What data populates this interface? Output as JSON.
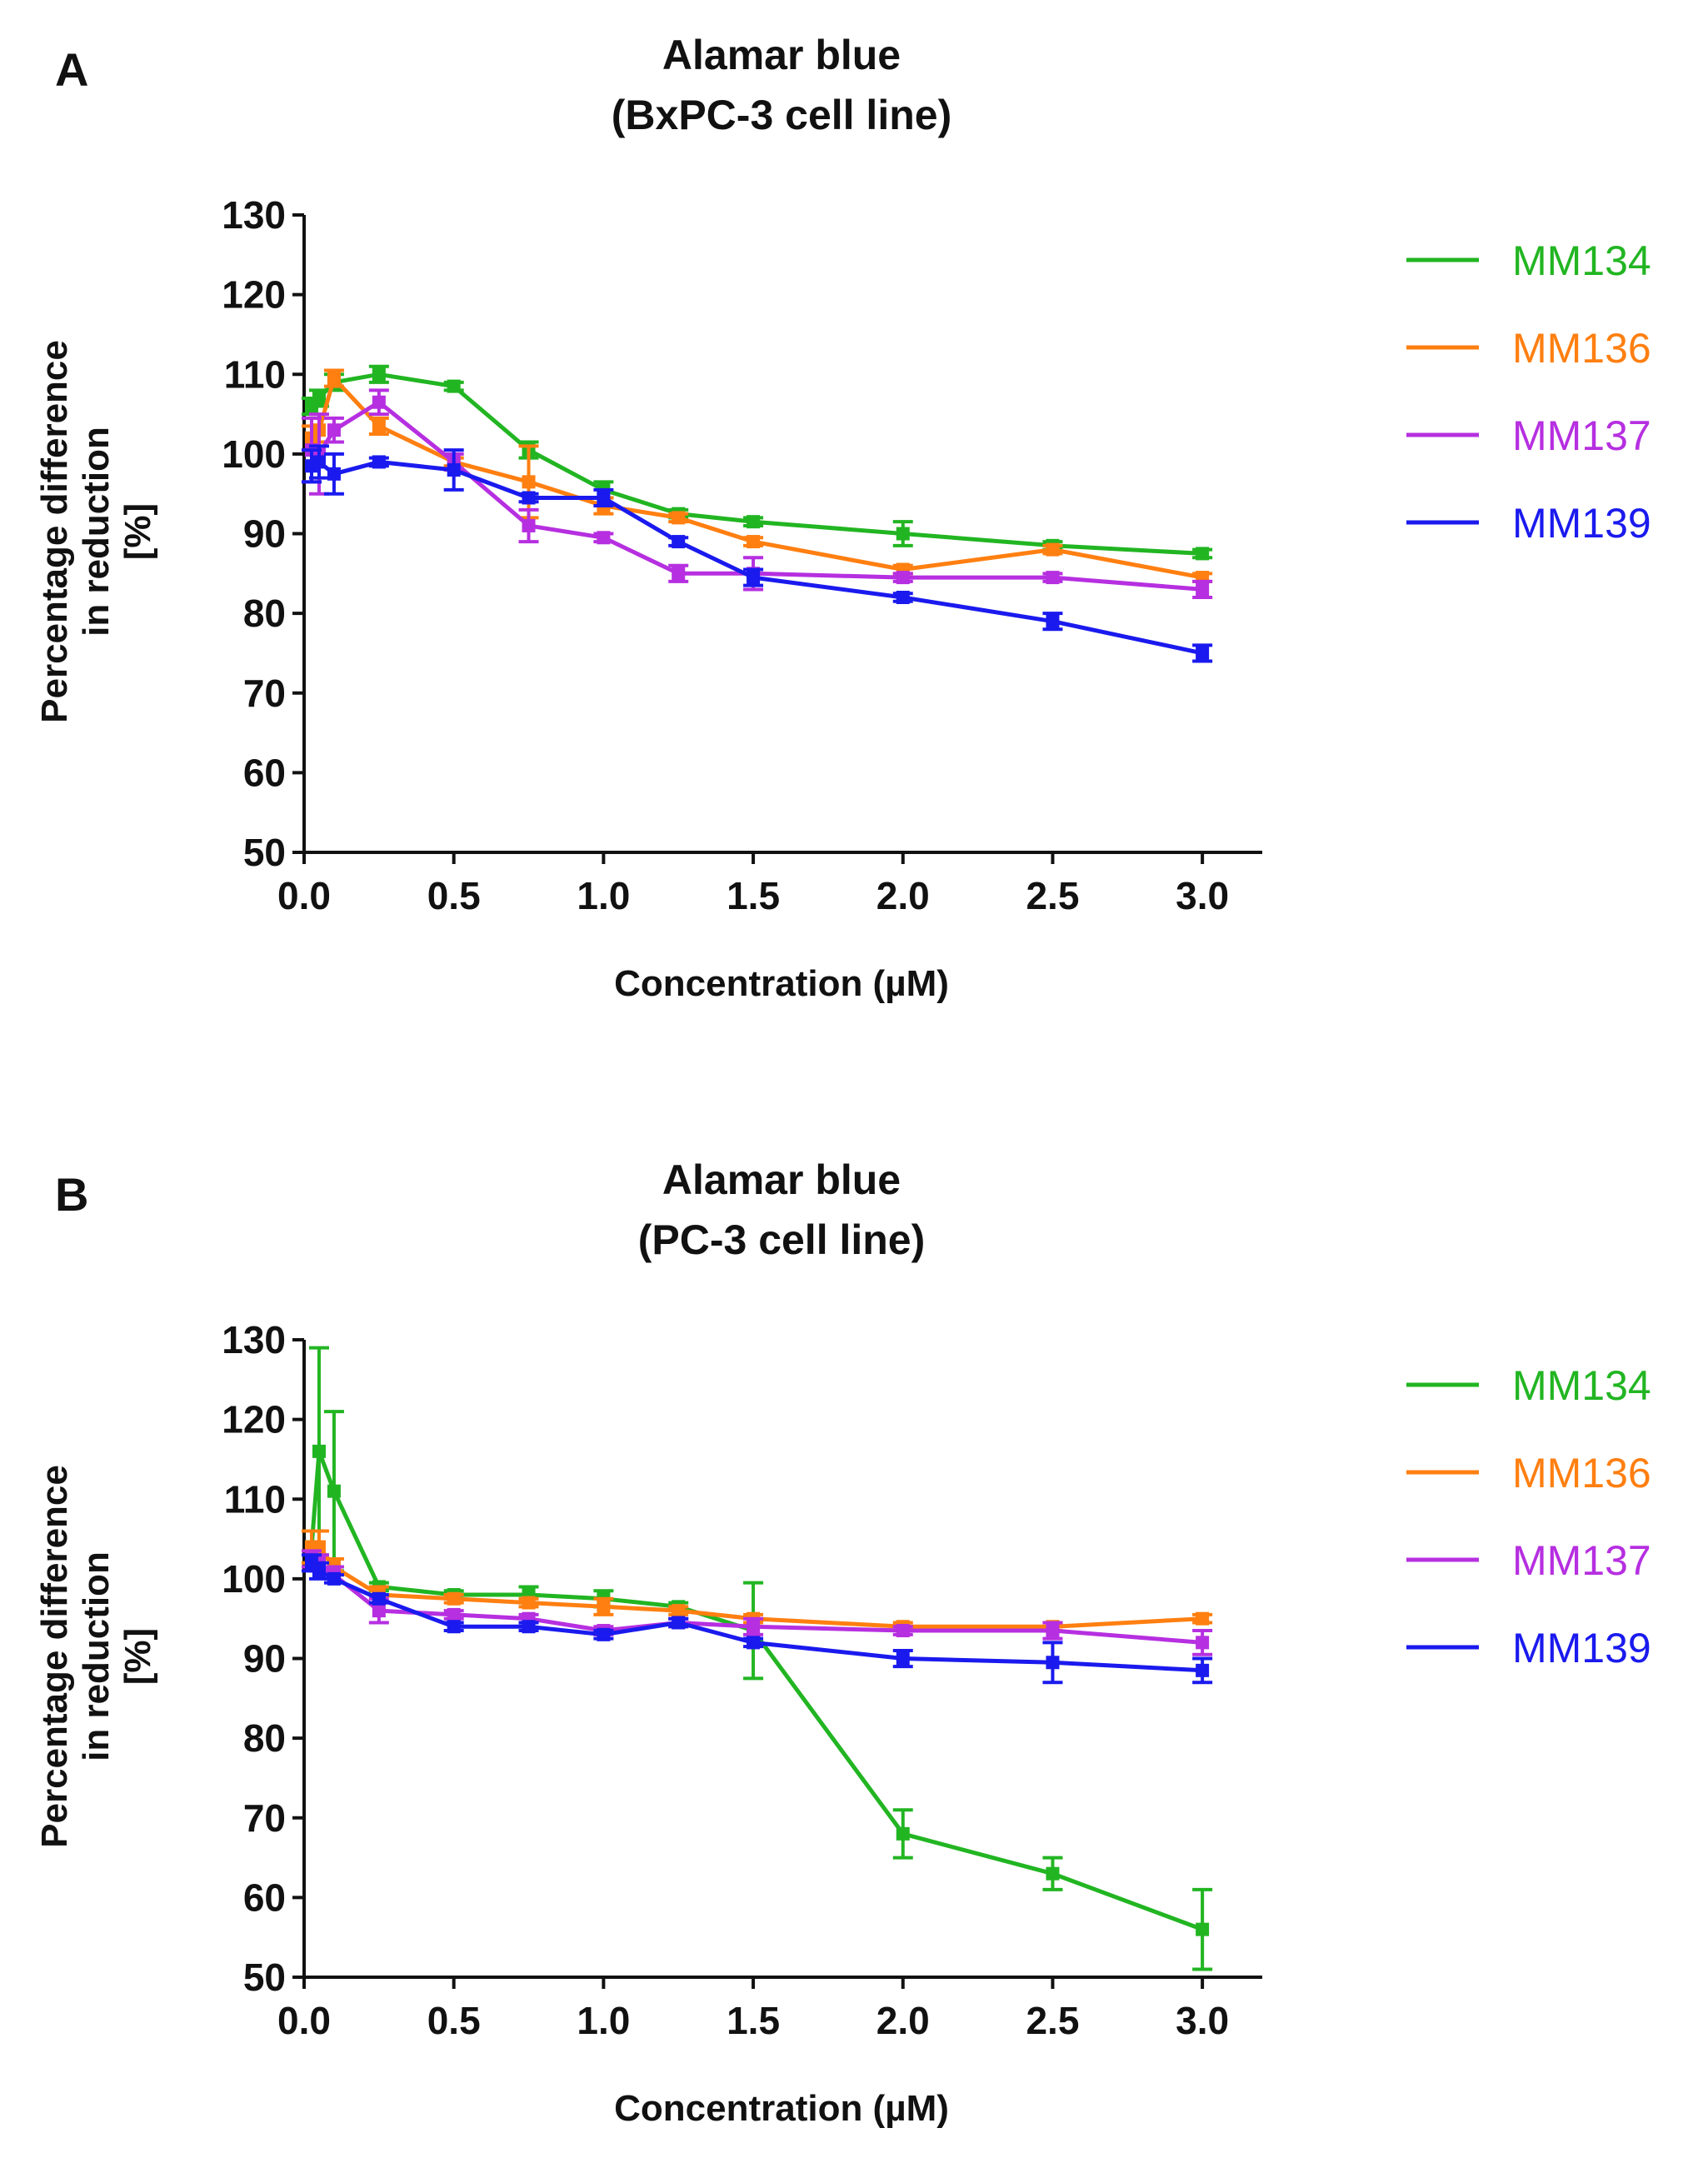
{
  "chart_data": [
    {
      "type": "line",
      "panel": "A",
      "title": "Alamar blue",
      "subtitle": "(BxPC-3 cell line)",
      "xlabel": "Concentration (µM)",
      "ylabel_line1": "Percentage difference",
      "ylabel_line2": "in reduction",
      "ylabel_line3": "[%]",
      "xlim": [
        0,
        3.2
      ],
      "ylim": [
        50,
        130
      ],
      "xticks": [
        0,
        0.5,
        1,
        1.5,
        2,
        2.5,
        3
      ],
      "xtick_labels": [
        "0.0",
        "0.5",
        "1.0",
        "1.5",
        "2.0",
        "2.5",
        "3.0"
      ],
      "yticks": [
        50,
        60,
        70,
        80,
        90,
        100,
        110,
        120,
        130
      ],
      "ytick_labels": [
        "50",
        "60",
        "70",
        "80",
        "90",
        "100",
        "110",
        "120",
        "130"
      ],
      "legend_position": "right",
      "series": [
        {
          "name": "MM134",
          "color": "#22b522",
          "x": [
            0.025,
            0.05,
            0.1,
            0.25,
            0.5,
            0.75,
            1.0,
            1.25,
            1.5,
            2.0,
            2.5,
            3.0
          ],
          "y": [
            106,
            107,
            109,
            110,
            108.5,
            100.5,
            95.5,
            92.5,
            91.5,
            90,
            88.5,
            87.5
          ],
          "err": [
            1,
            1,
            1,
            1,
            0.5,
            1,
            1,
            0.5,
            0.5,
            1.5,
            0.5,
            0.5
          ]
        },
        {
          "name": "MM136",
          "color": "#ff7f11",
          "x": [
            0.025,
            0.05,
            0.1,
            0.25,
            0.5,
            0.75,
            1.0,
            1.25,
            1.5,
            2.0,
            2.5,
            3.0
          ],
          "y": [
            102,
            103,
            109.5,
            103.5,
            99,
            96.5,
            93.5,
            92,
            89,
            85.5,
            88,
            84.5
          ],
          "err": [
            1.5,
            1.5,
            1,
            1,
            0.5,
            4.5,
            1,
            0.5,
            0.5,
            0.5,
            0.5,
            0.5
          ]
        },
        {
          "name": "MM137",
          "color": "#b62fe0",
          "x": [
            0.025,
            0.05,
            0.1,
            0.25,
            0.5,
            0.75,
            1.0,
            1.25,
            1.5,
            2.0,
            2.5,
            3.0
          ],
          "y": [
            100.5,
            100,
            103,
            106.5,
            99,
            91,
            89.5,
            85,
            85,
            84.5,
            84.5,
            83
          ],
          "err": [
            4,
            5,
            1.5,
            1.5,
            1,
            2,
            0.5,
            1,
            2,
            0.5,
            0.5,
            1
          ]
        },
        {
          "name": "MM139",
          "color": "#1a1aee",
          "x": [
            0.025,
            0.05,
            0.1,
            0.25,
            0.5,
            0.75,
            1.0,
            1.25,
            1.5,
            2.0,
            2.5,
            3.0
          ],
          "y": [
            98.5,
            99,
            97.5,
            99,
            98,
            94.5,
            94.5,
            89,
            84.5,
            82,
            79,
            75
          ],
          "err": [
            2,
            2,
            2.5,
            0.5,
            2.5,
            0.5,
            1,
            0.5,
            1,
            0.5,
            1,
            1
          ]
        }
      ]
    },
    {
      "type": "line",
      "panel": "B",
      "title": "Alamar blue",
      "subtitle": "(PC-3 cell line)",
      "xlabel": "Concentration (µM)",
      "ylabel_line1": "Percentage difference",
      "ylabel_line2": "in reduction",
      "ylabel_line3": "[%]",
      "xlim": [
        0,
        3.2
      ],
      "ylim": [
        50,
        130
      ],
      "xticks": [
        0,
        0.5,
        1,
        1.5,
        2,
        2.5,
        3
      ],
      "xtick_labels": [
        "0.0",
        "0.5",
        "1.0",
        "1.5",
        "2.0",
        "2.5",
        "3.0"
      ],
      "yticks": [
        50,
        60,
        70,
        80,
        90,
        100,
        110,
        120,
        130
      ],
      "ytick_labels": [
        "50",
        "60",
        "70",
        "80",
        "90",
        "100",
        "110",
        "120",
        "130"
      ],
      "legend_position": "right",
      "series": [
        {
          "name": "MM134",
          "color": "#22b522",
          "x": [
            0.025,
            0.05,
            0.1,
            0.25,
            0.5,
            0.75,
            1.0,
            1.25,
            1.5,
            2.0,
            2.5,
            3.0
          ],
          "y": [
            104,
            116,
            111,
            99,
            98,
            98,
            97.5,
            96.5,
            93.5,
            68,
            63,
            56
          ],
          "err": [
            2,
            13,
            10,
            0.5,
            0.5,
            1,
            1,
            0.5,
            6,
            3,
            2,
            5
          ]
        },
        {
          "name": "MM136",
          "color": "#ff7f11",
          "x": [
            0.025,
            0.05,
            0.1,
            0.25,
            0.5,
            0.75,
            1.0,
            1.25,
            1.5,
            2.0,
            2.5,
            3.0
          ],
          "y": [
            104,
            104,
            101.5,
            98,
            97.5,
            97,
            96.5,
            96,
            95,
            94,
            94,
            95
          ],
          "err": [
            2,
            2,
            1,
            1,
            0.5,
            0.5,
            1,
            0.5,
            0.5,
            0.5,
            0.5,
            0.5
          ]
        },
        {
          "name": "MM137",
          "color": "#b62fe0",
          "x": [
            0.025,
            0.05,
            0.1,
            0.25,
            0.5,
            0.75,
            1.0,
            1.25,
            1.5,
            2.0,
            2.5,
            3.0
          ],
          "y": [
            102.5,
            102,
            100.5,
            96,
            95.5,
            95,
            93.5,
            94.5,
            94,
            93.5,
            93.5,
            92
          ],
          "err": [
            1,
            1,
            1,
            1.5,
            0.5,
            0.5,
            0.5,
            0.5,
            1,
            0.5,
            1,
            1.5
          ]
        },
        {
          "name": "MM139",
          "color": "#1a1aee",
          "x": [
            0.025,
            0.05,
            0.1,
            0.25,
            0.5,
            0.75,
            1.0,
            1.25,
            1.5,
            2.0,
            2.5,
            3.0
          ],
          "y": [
            102,
            101,
            100,
            97.5,
            94,
            94,
            93,
            94.5,
            92,
            90,
            89.5,
            88.5
          ],
          "err": [
            1,
            1,
            0.5,
            0.5,
            0.5,
            0.5,
            0.5,
            0.5,
            0.5,
            1,
            2.5,
            1.5
          ]
        }
      ]
    }
  ]
}
